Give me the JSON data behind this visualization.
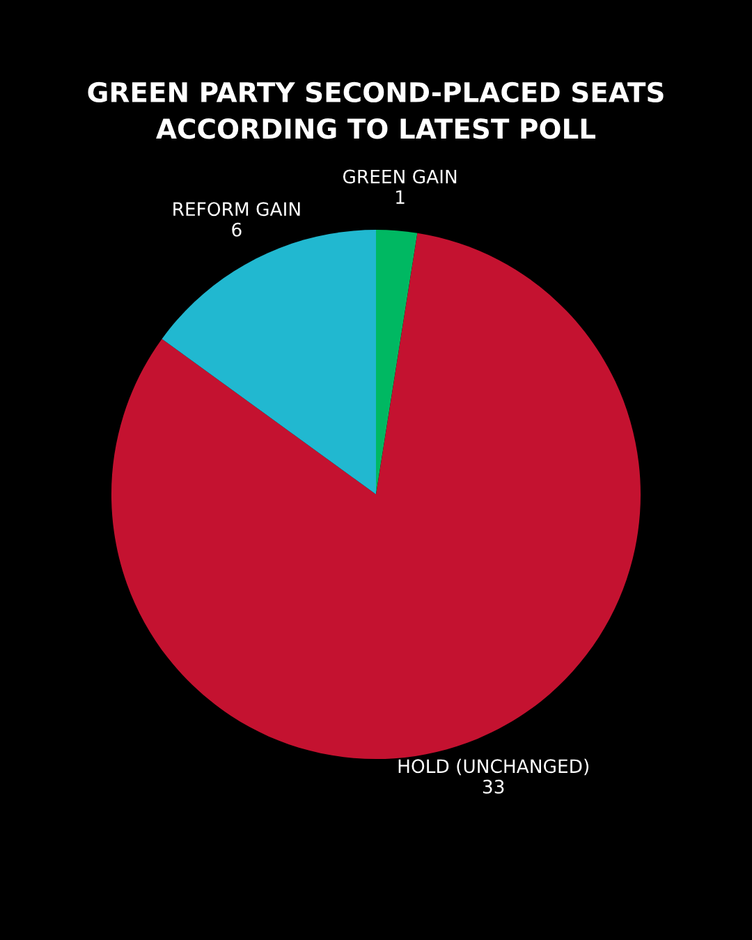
{
  "chart_data": {
    "type": "pie",
    "title": "GREEN PARTY SECOND-PLACED SEATS\nACCORDING TO LATEST POLL",
    "categories": [
      "GREEN GAIN",
      "HOLD (UNCHANGED)",
      "REFORM GAIN"
    ],
    "values": [
      1,
      33,
      6
    ],
    "colors": [
      "#00b862",
      "#c41230",
      "#21b8d0"
    ],
    "data_labels": true,
    "legend": false
  }
}
